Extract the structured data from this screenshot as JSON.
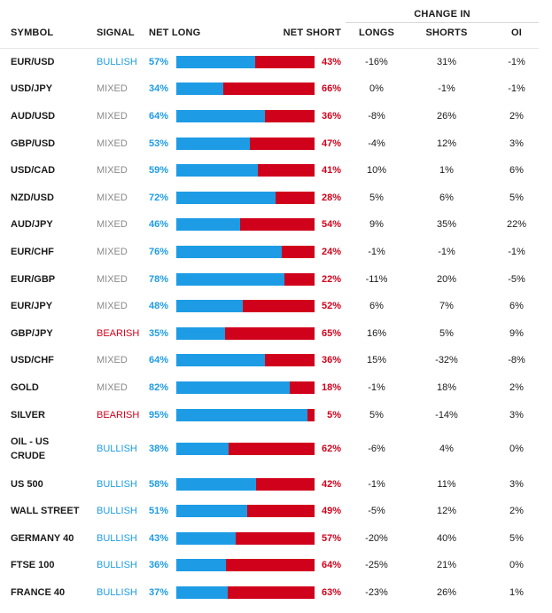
{
  "headers": {
    "symbol": "SYMBOL",
    "signal": "SIGNAL",
    "net_long": "NET LONG",
    "net_short": "NET SHORT",
    "change_in": "CHANGE IN",
    "longs": "LONGS",
    "shorts": "SHORTS",
    "oi": "OI"
  },
  "colors": {
    "long": "#1d9ce5",
    "short": "#d0021b",
    "mixed": "#8a8a8a"
  },
  "rows": [
    {
      "symbol": "EUR/USD",
      "signal": "BULLISH",
      "net_long": "57%",
      "net_short": "43%",
      "long_pct": 57,
      "chg_longs": "-16%",
      "chg_shorts": "31%",
      "chg_oi": "-1%"
    },
    {
      "symbol": "USD/JPY",
      "signal": "MIXED",
      "net_long": "34%",
      "net_short": "66%",
      "long_pct": 34,
      "chg_longs": "0%",
      "chg_shorts": "-1%",
      "chg_oi": "-1%"
    },
    {
      "symbol": "AUD/USD",
      "signal": "MIXED",
      "net_long": "64%",
      "net_short": "36%",
      "long_pct": 64,
      "chg_longs": "-8%",
      "chg_shorts": "26%",
      "chg_oi": "2%"
    },
    {
      "symbol": "GBP/USD",
      "signal": "MIXED",
      "net_long": "53%",
      "net_short": "47%",
      "long_pct": 53,
      "chg_longs": "-4%",
      "chg_shorts": "12%",
      "chg_oi": "3%"
    },
    {
      "symbol": "USD/CAD",
      "signal": "MIXED",
      "net_long": "59%",
      "net_short": "41%",
      "long_pct": 59,
      "chg_longs": "10%",
      "chg_shorts": "1%",
      "chg_oi": "6%"
    },
    {
      "symbol": "NZD/USD",
      "signal": "MIXED",
      "net_long": "72%",
      "net_short": "28%",
      "long_pct": 72,
      "chg_longs": "5%",
      "chg_shorts": "6%",
      "chg_oi": "5%"
    },
    {
      "symbol": "AUD/JPY",
      "signal": "MIXED",
      "net_long": "46%",
      "net_short": "54%",
      "long_pct": 46,
      "chg_longs": "9%",
      "chg_shorts": "35%",
      "chg_oi": "22%"
    },
    {
      "symbol": "EUR/CHF",
      "signal": "MIXED",
      "net_long": "76%",
      "net_short": "24%",
      "long_pct": 76,
      "chg_longs": "-1%",
      "chg_shorts": "-1%",
      "chg_oi": "-1%"
    },
    {
      "symbol": "EUR/GBP",
      "signal": "MIXED",
      "net_long": "78%",
      "net_short": "22%",
      "long_pct": 78,
      "chg_longs": "-11%",
      "chg_shorts": "20%",
      "chg_oi": "-5%"
    },
    {
      "symbol": "EUR/JPY",
      "signal": "MIXED",
      "net_long": "48%",
      "net_short": "52%",
      "long_pct": 48,
      "chg_longs": "6%",
      "chg_shorts": "7%",
      "chg_oi": "6%"
    },
    {
      "symbol": "GBP/JPY",
      "signal": "BEARISH",
      "net_long": "35%",
      "net_short": "65%",
      "long_pct": 35,
      "chg_longs": "16%",
      "chg_shorts": "5%",
      "chg_oi": "9%"
    },
    {
      "symbol": "USD/CHF",
      "signal": "MIXED",
      "net_long": "64%",
      "net_short": "36%",
      "long_pct": 64,
      "chg_longs": "15%",
      "chg_shorts": "-32%",
      "chg_oi": "-8%"
    },
    {
      "symbol": "GOLD",
      "signal": "MIXED",
      "net_long": "82%",
      "net_short": "18%",
      "long_pct": 82,
      "chg_longs": "-1%",
      "chg_shorts": "18%",
      "chg_oi": "2%"
    },
    {
      "symbol": "SILVER",
      "signal": "BEARISH",
      "net_long": "95%",
      "net_short": "5%",
      "long_pct": 95,
      "chg_longs": "5%",
      "chg_shorts": "-14%",
      "chg_oi": "3%"
    },
    {
      "symbol": "OIL - US CRUDE",
      "signal": "BULLISH",
      "net_long": "38%",
      "net_short": "62%",
      "long_pct": 38,
      "chg_longs": "-6%",
      "chg_shorts": "4%",
      "chg_oi": "0%"
    },
    {
      "symbol": "US 500",
      "signal": "BULLISH",
      "net_long": "58%",
      "net_short": "42%",
      "long_pct": 58,
      "chg_longs": "-1%",
      "chg_shorts": "11%",
      "chg_oi": "3%"
    },
    {
      "symbol": "WALL STREET",
      "signal": "BULLISH",
      "net_long": "51%",
      "net_short": "49%",
      "long_pct": 51,
      "chg_longs": "-5%",
      "chg_shorts": "12%",
      "chg_oi": "2%"
    },
    {
      "symbol": "GERMANY 40",
      "signal": "BULLISH",
      "net_long": "43%",
      "net_short": "57%",
      "long_pct": 43,
      "chg_longs": "-20%",
      "chg_shorts": "40%",
      "chg_oi": "5%"
    },
    {
      "symbol": "FTSE 100",
      "signal": "BULLISH",
      "net_long": "36%",
      "net_short": "64%",
      "long_pct": 36,
      "chg_longs": "-25%",
      "chg_shorts": "21%",
      "chg_oi": "0%"
    },
    {
      "symbol": "FRANCE 40",
      "signal": "BULLISH",
      "net_long": "37%",
      "net_short": "63%",
      "long_pct": 37,
      "chg_longs": "-23%",
      "chg_shorts": "26%",
      "chg_oi": "1%"
    }
  ]
}
